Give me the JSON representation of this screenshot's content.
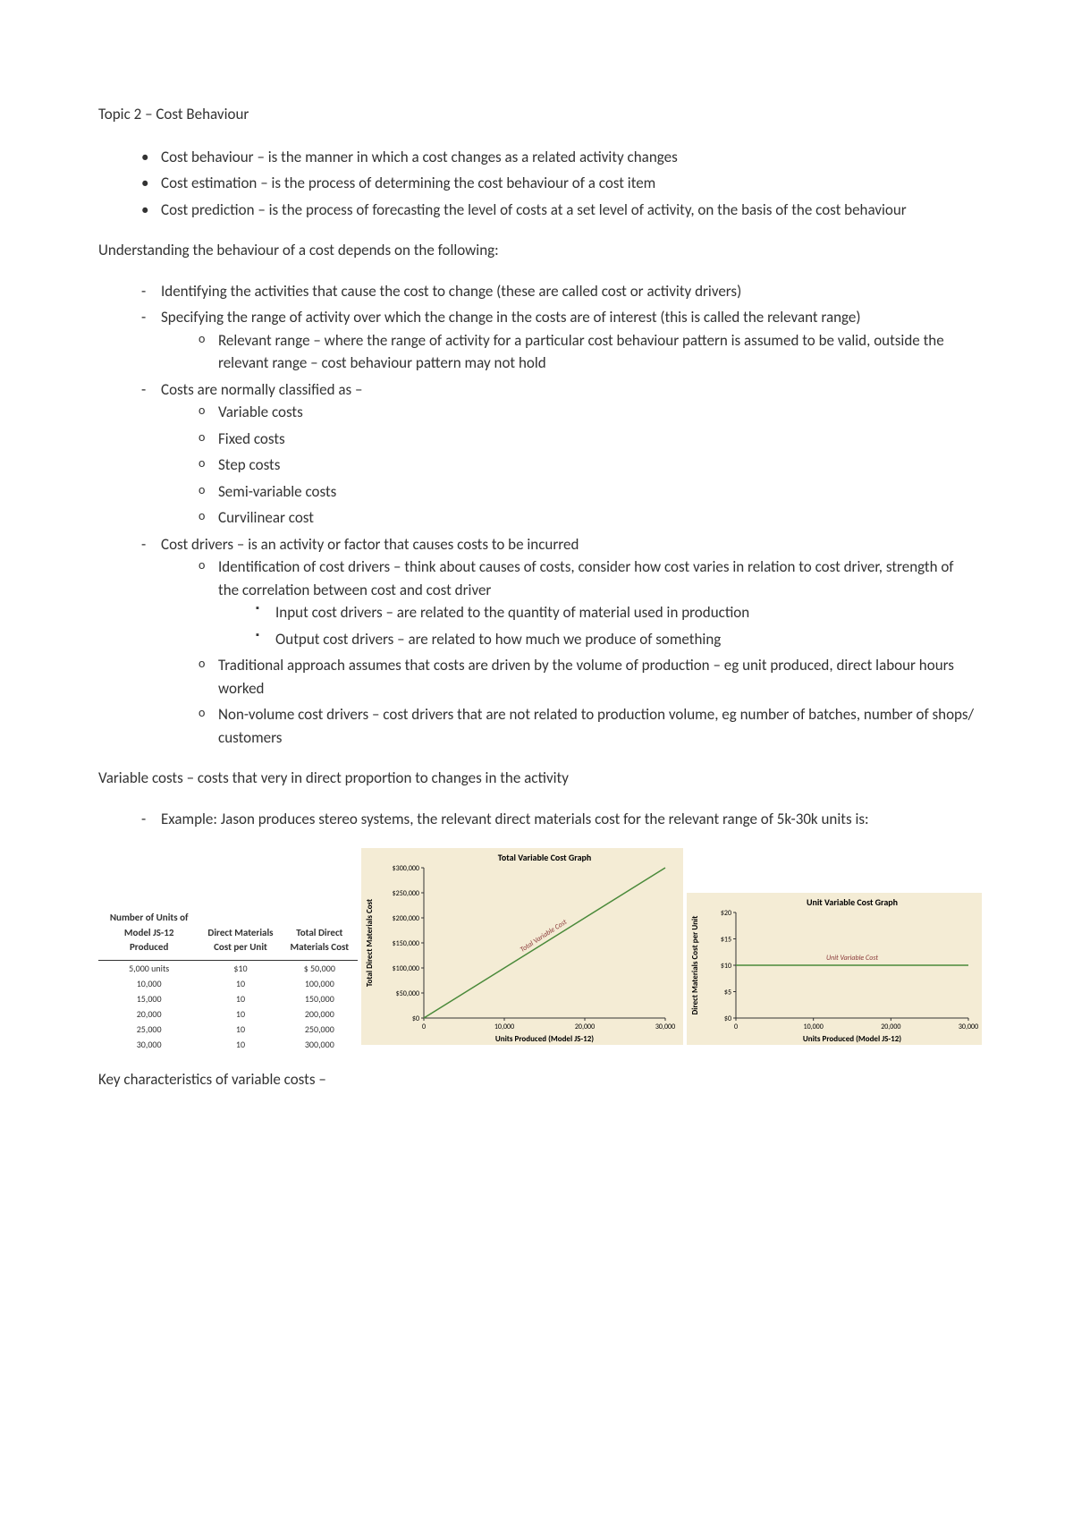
{
  "title": "Topic 2 – Cost Behaviour",
  "defs": [
    "Cost behaviour – is the manner in which a cost changes as a related activity changes",
    "Cost estimation – is the process of determining the cost behaviour of a cost item",
    "Cost prediction – is the process of forecasting the level of costs at a set level of activity, on the basis of the cost behaviour"
  ],
  "understanding_intro": "Understanding the behaviour of a cost depends on the following:",
  "understanding": {
    "item1": "Identifying the activities that cause the cost to change (these are called cost or activity drivers)",
    "item2": "Specifying the range of activity over which the change in the costs are of interest (this is called the relevant range)",
    "item2_sub1": "Relevant range – where the range of activity for a particular cost behaviour pattern is assumed to be valid, outside the relevant range – cost behaviour pattern may not hold",
    "item3": "Costs are normally classified as –",
    "item3_subs": [
      "Variable costs",
      "Fixed costs",
      "Step costs",
      "Semi-variable costs",
      "Curvilinear cost"
    ],
    "item4": "Cost drivers – is an activity or factor that causes costs to be incurred",
    "item4_sub1": "Identification of cost drivers – think about causes of costs, consider how cost varies in relation to cost driver, strength of the correlation between cost and cost driver",
    "item4_sub1_a": "Input cost drivers – are related to the quantity of material used in production",
    "item4_sub1_b": "Output cost drivers – are related to how much we produce of something",
    "item4_sub2": "Traditional approach assumes that costs are driven by the volume of production – eg unit produced, direct labour hours worked",
    "item4_sub3": "Non-volume cost drivers – cost drivers that are not related to production volume, eg number of batches, number of shops/ customers"
  },
  "variable_heading": "Variable costs – costs that very in direct proportion to changes in the activity",
  "variable_example": "Example: Jason produces stereo systems, the relevant direct materials cost for the relevant range of 5k-30k units is:",
  "table": {
    "columns": [
      "Number of Units of Model JS-12 Produced",
      "Direct Materials Cost per Unit",
      "Total Direct Materials Cost"
    ],
    "rows": [
      [
        "5,000 units",
        "$10",
        "$ 50,000"
      ],
      [
        "10,000",
        "10",
        "100,000"
      ],
      [
        "15,000",
        "10",
        "150,000"
      ],
      [
        "20,000",
        "10",
        "200,000"
      ],
      [
        "25,000",
        "10",
        "250,000"
      ],
      [
        "30,000",
        "10",
        "300,000"
      ]
    ]
  },
  "chart1": {
    "type": "line",
    "title": "Total Variable Cost Graph",
    "ylabel": "Total Direct Materials Cost",
    "xlabel": "Units Produced (Model JS-12)",
    "series_label": "Total Variable Cost",
    "bg_color": "#f4ecd5",
    "line_color": "#4a8a3a",
    "xlim": [
      0,
      30000
    ],
    "ylim": [
      0,
      300000
    ],
    "xticks": [
      0,
      10000,
      20000,
      30000
    ],
    "xtick_labels": [
      "0",
      "10,000",
      "20,000",
      "30,000"
    ],
    "yticks": [
      0,
      50000,
      100000,
      150000,
      200000,
      250000,
      300000
    ],
    "ytick_labels": [
      "$0",
      "$50,000",
      "$100,000",
      "$150,000",
      "$200,000",
      "$250,000",
      "$300,000"
    ],
    "data": [
      [
        0,
        0
      ],
      [
        30000,
        300000
      ]
    ]
  },
  "chart2": {
    "type": "line",
    "title": "Unit Variable Cost Graph",
    "ylabel": "Direct Materials Cost per Unit",
    "xlabel": "Units Produced (Model JS-12)",
    "series_label": "Unit Variable Cost",
    "bg_color": "#f4ecd5",
    "line_color": "#4a8a3a",
    "xlim": [
      0,
      30000
    ],
    "ylim": [
      0,
      20
    ],
    "xticks": [
      0,
      10000,
      20000,
      30000
    ],
    "xtick_labels": [
      "0",
      "10,000",
      "20,000",
      "30,000"
    ],
    "yticks": [
      0,
      5,
      10,
      15,
      20
    ],
    "ytick_labels": [
      "$0",
      "$5",
      "$10",
      "$15",
      "$20"
    ],
    "data": [
      [
        0,
        10
      ],
      [
        30000,
        10
      ]
    ]
  },
  "key_chars": "Key characteristics of variable costs –"
}
